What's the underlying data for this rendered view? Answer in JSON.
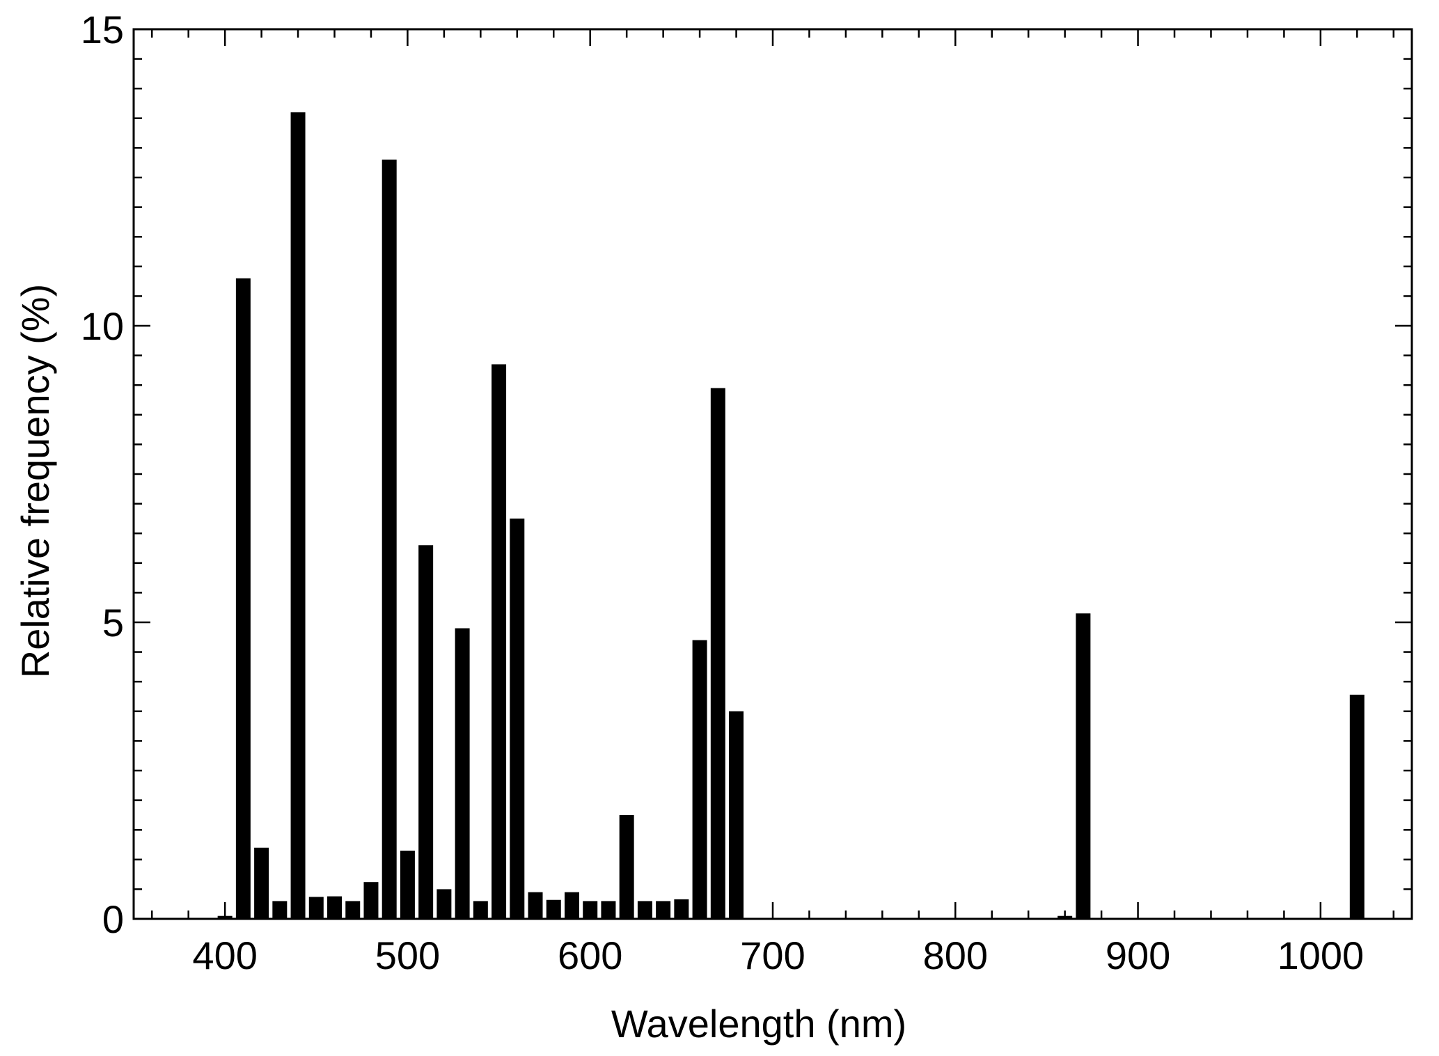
{
  "chart_data": {
    "type": "bar",
    "title": "",
    "xlabel": "Wavelength (nm)",
    "ylabel": "Relative frequency (%)",
    "xlim": [
      350,
      1050
    ],
    "ylim": [
      0,
      15
    ],
    "x_ticks": [
      400,
      500,
      600,
      700,
      800,
      900,
      1000
    ],
    "y_ticks": [
      0,
      5,
      10,
      15
    ],
    "grid": false,
    "legend": "none",
    "bar_color": "#000000",
    "bar_width_nm": 8,
    "series": [
      {
        "x": [
          400,
          410,
          420,
          430,
          440,
          450,
          460,
          470,
          480,
          490,
          500,
          510,
          520,
          530,
          540,
          550,
          560,
          570,
          580,
          590,
          600,
          610,
          620,
          630,
          640,
          650,
          660,
          670,
          680,
          860,
          870,
          1020
        ],
        "values": [
          0.05,
          10.8,
          1.2,
          0.3,
          13.6,
          0.37,
          0.38,
          0.3,
          0.62,
          12.8,
          1.15,
          6.3,
          0.5,
          4.9,
          0.3,
          9.35,
          6.75,
          0.45,
          0.32,
          0.45,
          0.3,
          0.3,
          1.75,
          0.3,
          0.3,
          0.33,
          4.7,
          8.95,
          3.5,
          0.05,
          5.15,
          3.78
        ]
      }
    ]
  }
}
